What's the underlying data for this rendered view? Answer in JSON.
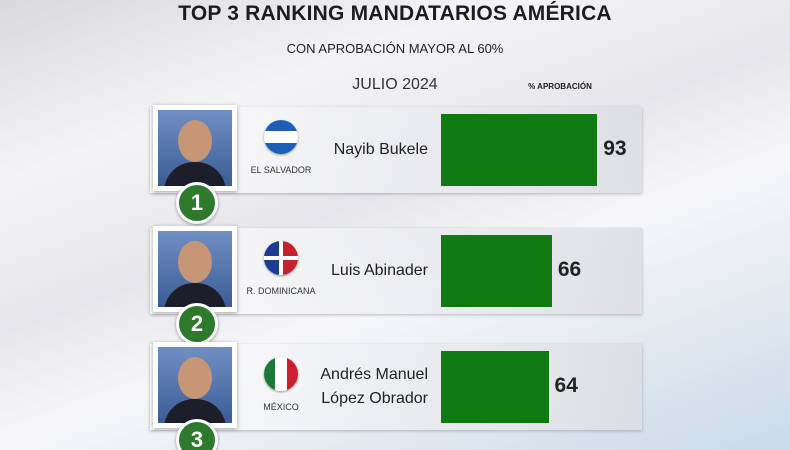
{
  "chart_data": {
    "type": "bar",
    "orientation": "horizontal",
    "title": "TOP 3 RANKING MANDATARIOS AMÉRICA",
    "subtitle": "CON APROBACIÓN MAYOR AL 60%",
    "date_label": "JULIO 2024",
    "value_label": "% APROBACIÓN",
    "categories": [
      "Nayib Bukele",
      "Luis Abinader",
      "Andrés Manuel López Obrador"
    ],
    "countries": [
      "EL SALVADOR",
      "R. DOMINICANA",
      "MÉXICO"
    ],
    "ranks": [
      1,
      2,
      3
    ],
    "values": [
      93,
      66,
      64
    ],
    "color": "#0f7a12"
  }
}
